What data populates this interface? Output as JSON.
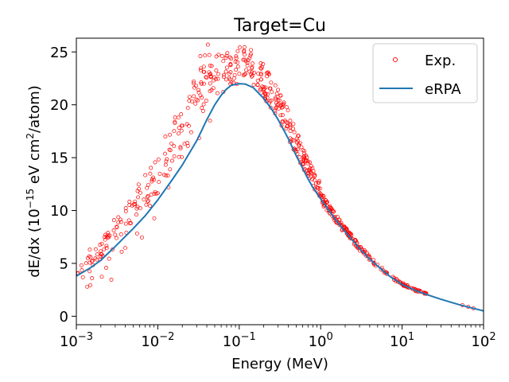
{
  "chart_data": {
    "type": "scatter",
    "title": "Target=Cu",
    "xlabel": "Energy (MeV)",
    "ylabel": "dE/dx (10^-15 eV cm^2/atom)",
    "ylabel_parts": {
      "prefix": "dE/dx (10",
      "exp1": "−15",
      "middle": " eV cm",
      "exp2": "2",
      "suffix": "/atom)"
    },
    "xscale": "log",
    "xlim": [
      0.001,
      100
    ],
    "ylim": [
      -0.8,
      26.3
    ],
    "x_ticks": [
      {
        "value": 0.001,
        "base": "10",
        "exp": "−3"
      },
      {
        "value": 0.01,
        "base": "10",
        "exp": "−2"
      },
      {
        "value": 0.1,
        "base": "10",
        "exp": "−1"
      },
      {
        "value": 1,
        "base": "10",
        "exp": "0"
      },
      {
        "value": 10,
        "base": "10",
        "exp": "1"
      },
      {
        "value": 100,
        "base": "10",
        "exp": "2"
      }
    ],
    "y_ticks": [
      0,
      5,
      10,
      15,
      20,
      25
    ],
    "legend_position": "top-right",
    "legend": [
      {
        "name": "Exp.",
        "marker": "open-circle",
        "color": "#ff0000"
      },
      {
        "name": "eRPA",
        "marker": "line",
        "color": "#1f77b4"
      }
    ],
    "series": [
      {
        "name": "eRPA",
        "kind": "line",
        "color": "#1f77b4",
        "x": [
          0.001,
          0.0015,
          0.002,
          0.003,
          0.005,
          0.007,
          0.01,
          0.015,
          0.02,
          0.03,
          0.04,
          0.05,
          0.06,
          0.07,
          0.08,
          0.1,
          0.12,
          0.15,
          0.2,
          0.25,
          0.3,
          0.4,
          0.5,
          0.6,
          0.7,
          0.8,
          1,
          1.5,
          2,
          3,
          4,
          5,
          7,
          10,
          15,
          20,
          30,
          50,
          70,
          100
        ],
        "y": [
          3.8,
          4.6,
          5.3,
          6.6,
          8.3,
          9.5,
          11.0,
          12.9,
          14.3,
          16.6,
          18.6,
          20.0,
          20.9,
          21.5,
          21.85,
          22.0,
          21.95,
          21.6,
          20.6,
          19.6,
          18.6,
          16.8,
          15.2,
          14.0,
          13.0,
          12.2,
          11.1,
          9.2,
          8.0,
          6.4,
          5.4,
          4.75,
          3.8,
          3.0,
          2.4,
          2.05,
          1.6,
          1.1,
          0.8,
          0.5
        ]
      }
    ]
  }
}
